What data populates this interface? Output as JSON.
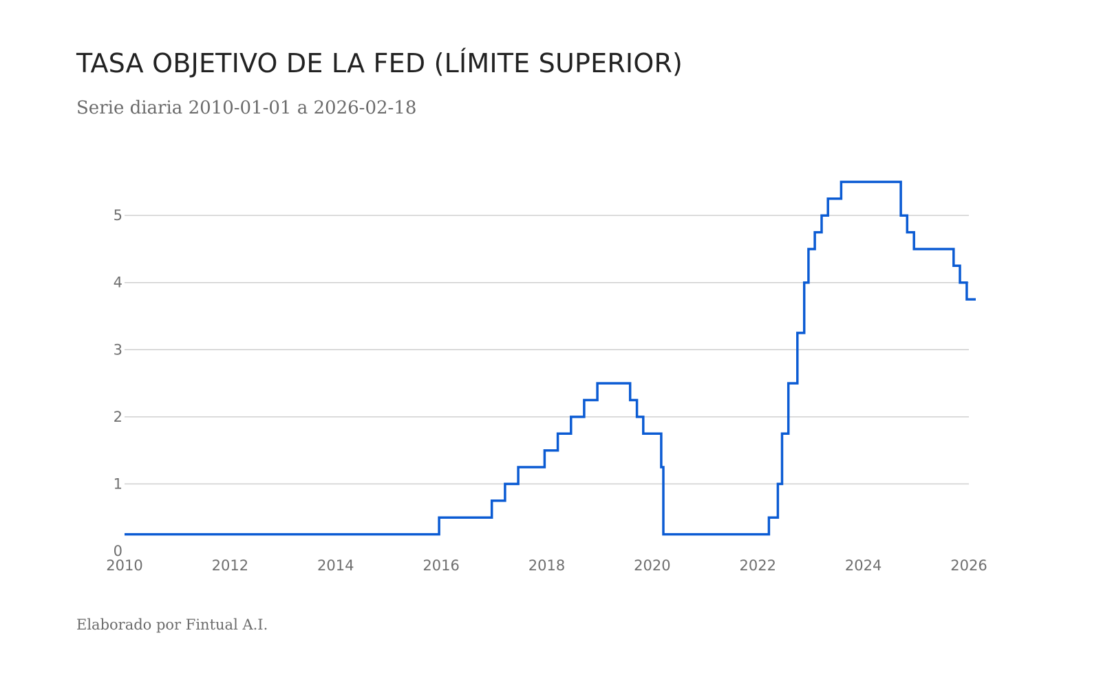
{
  "header": {
    "title": "TASA OBJETIVO DE LA FED (LÍMITE SUPERIOR)",
    "subtitle": "Serie diaria 2010-01-01 a 2026-02-18"
  },
  "footer": {
    "credit": "Elaborado por Fintual A.I."
  },
  "chart_data": {
    "type": "line",
    "title": "TASA OBJETIVO DE LA FED (LÍMITE SUPERIOR)",
    "subtitle": "Serie diaria 2010-01-01 a 2026-02-18",
    "xlabel": "",
    "ylabel": "",
    "step": true,
    "grid": true,
    "x_ticks": [
      2010,
      2012,
      2014,
      2016,
      2018,
      2020,
      2022,
      2024,
      2026
    ],
    "y_ticks": [
      0,
      1,
      2,
      3,
      4,
      5
    ],
    "xlim": [
      2010,
      2026
    ],
    "ylim": [
      0,
      5.75
    ],
    "line_color": "#0b5bd3",
    "series": [
      {
        "points": [
          [
            2010.0,
            0.25
          ],
          [
            2015.96,
            0.5
          ],
          [
            2016.96,
            0.75
          ],
          [
            2017.21,
            1.0
          ],
          [
            2017.46,
            1.25
          ],
          [
            2017.96,
            1.5
          ],
          [
            2018.21,
            1.75
          ],
          [
            2018.46,
            2.0
          ],
          [
            2018.71,
            2.25
          ],
          [
            2018.96,
            2.5
          ],
          [
            2019.58,
            2.25
          ],
          [
            2019.71,
            2.0
          ],
          [
            2019.83,
            1.75
          ],
          [
            2020.17,
            1.25
          ],
          [
            2020.21,
            0.25
          ],
          [
            2022.21,
            0.5
          ],
          [
            2022.38,
            1.0
          ],
          [
            2022.46,
            1.75
          ],
          [
            2022.58,
            2.5
          ],
          [
            2022.75,
            3.25
          ],
          [
            2022.88,
            4.0
          ],
          [
            2022.96,
            4.5
          ],
          [
            2023.08,
            4.75
          ],
          [
            2023.21,
            5.0
          ],
          [
            2023.33,
            5.25
          ],
          [
            2023.58,
            5.5
          ],
          [
            2024.71,
            5.0
          ],
          [
            2024.83,
            4.75
          ],
          [
            2024.96,
            4.5
          ],
          [
            2025.71,
            4.25
          ],
          [
            2025.83,
            4.0
          ],
          [
            2025.96,
            3.75
          ],
          [
            2026.13,
            3.75
          ]
        ]
      }
    ]
  }
}
